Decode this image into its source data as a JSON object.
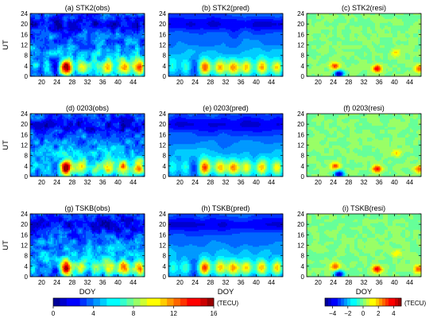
{
  "chart_data": {
    "type": "heatmap",
    "colorbars": [
      {
        "cmap": "jet",
        "ticks": [
          "0",
          "4",
          "8",
          "12",
          "16"
        ],
        "vmin": 0,
        "vmax": 16,
        "unit_label": "(TECU)"
      },
      {
        "cmap": "jet",
        "ticks": [
          "−4",
          "−2",
          "0",
          "2",
          "4"
        ],
        "vmin": -5,
        "vmax": 5,
        "unit_label": "(TECU)"
      }
    ],
    "panels": [
      {
        "title": "(a) STK2(obs)",
        "station": "STK2",
        "kind": "obs",
        "colorbar": 0
      },
      {
        "title": "(b) STK2(pred)",
        "station": "STK2",
        "kind": "pred",
        "colorbar": 0
      },
      {
        "title": "(c) STK2(resi)",
        "station": "STK2",
        "kind": "resi",
        "colorbar": 1
      },
      {
        "title": "(d) 0203(obs)",
        "station": "0203",
        "kind": "obs",
        "colorbar": 0
      },
      {
        "title": "(e) 0203(pred)",
        "station": "0203",
        "kind": "pred",
        "colorbar": 0
      },
      {
        "title": "(f) 0203(resi)",
        "station": "0203",
        "kind": "resi",
        "colorbar": 1
      },
      {
        "title": "(g) TSKB(obs)",
        "station": "TSKB",
        "kind": "obs",
        "colorbar": 0
      },
      {
        "title": "(h) TSKB(pred)",
        "station": "TSKB",
        "kind": "pred",
        "colorbar": 0
      },
      {
        "title": "(i) TSKB(resi)",
        "station": "TSKB",
        "kind": "resi",
        "colorbar": 1
      }
    ],
    "x_axis": {
      "label": "DOY",
      "range": [
        17,
        47
      ],
      "ticks": [
        20,
        24,
        28,
        32,
        36,
        40,
        44
      ]
    },
    "y_axis": {
      "label": "UT",
      "range": [
        0,
        24
      ],
      "ticks": [
        0,
        4,
        8,
        12,
        16,
        20,
        24
      ]
    },
    "daily_peak_days": [
      18,
      21.5,
      26.5,
      30.5,
      34,
      37.5,
      41.5,
      45.5
    ],
    "peak_tec_obs": [
      5.5,
      5,
      16,
      9,
      7,
      10,
      12,
      12.5
    ],
    "peak_tec_pred": [
      6.5,
      6.5,
      13,
      10.5,
      11,
      10,
      11,
      10.5
    ],
    "residual_hotspots": [
      {
        "doy": 25.5,
        "ut": 1,
        "value": -4.5
      },
      {
        "doy": 24.5,
        "ut": 4,
        "value": 3
      },
      {
        "doy": 35.5,
        "ut": 3,
        "value": 4
      },
      {
        "doy": 40.5,
        "ut": 9,
        "value": 1.5
      },
      {
        "doy": 46.5,
        "ut": 3,
        "value": 3
      }
    ]
  }
}
